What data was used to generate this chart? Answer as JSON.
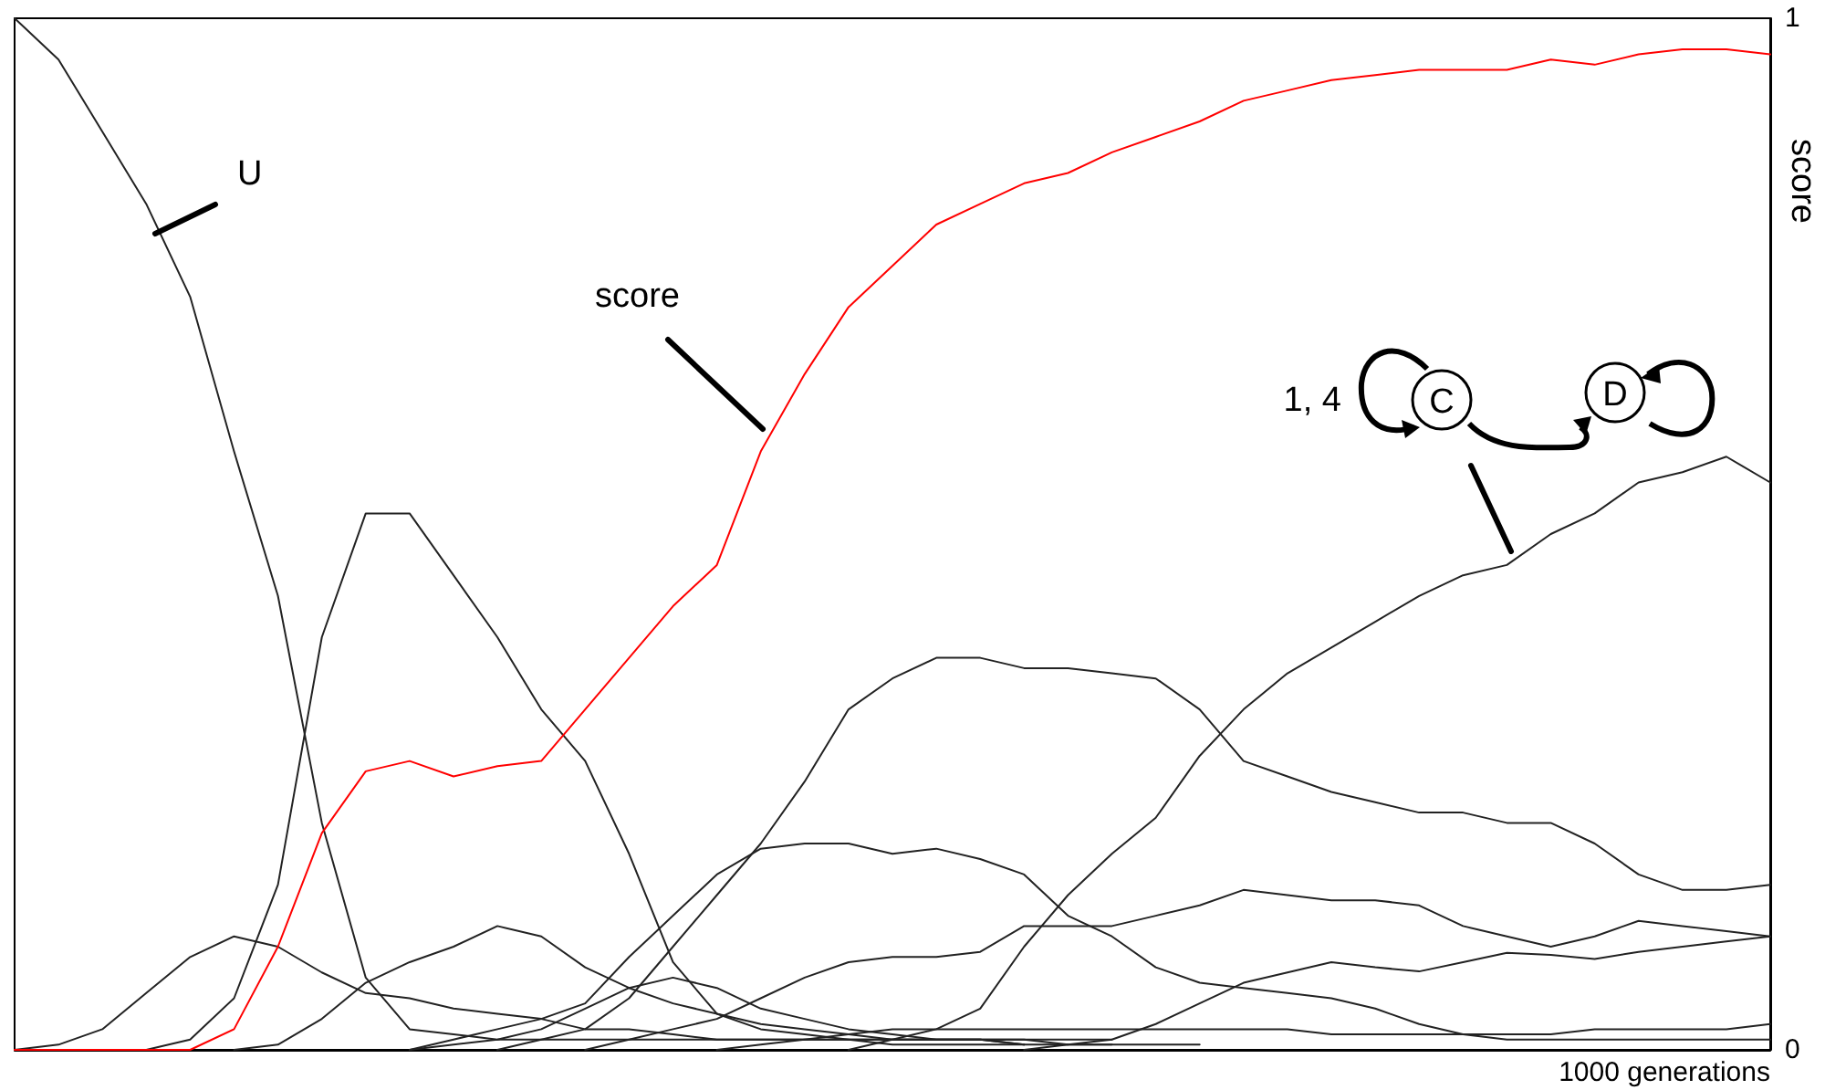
{
  "chart_data": {
    "type": "line",
    "xlabel": "1000 generations",
    "ylabel": "score",
    "categories": [
      null,
      null,
      null,
      null,
      null,
      null,
      null,
      null,
      null,
      null,
      null,
      null,
      null,
      null,
      null,
      null,
      null,
      null,
      null,
      null,
      null,
      null,
      null,
      null,
      null,
      null,
      null,
      null,
      null,
      null,
      null,
      null,
      null,
      null,
      null,
      null,
      null,
      null,
      null,
      null,
      null
    ],
    "ylim": [
      0,
      1
    ],
    "yticks": [
      0,
      1
    ],
    "grid": false,
    "marker": "none",
    "line_style": "solid",
    "annotations": [
      "U",
      "score",
      "1, 4",
      "C",
      "D"
    ],
    "series": [
      {
        "color": "#222222",
        "values": [
          1.0,
          0.96,
          0.89,
          0.82,
          0.73,
          0.58,
          0.44,
          0.22,
          0.07,
          0.02,
          0.015,
          0.01,
          0.01,
          0.01,
          0.01,
          0.01,
          0.01,
          0.01,
          0.01,
          0.01,
          0.01,
          0.01,
          0.01,
          0.01,
          0.01,
          0.01,
          null,
          null,
          null,
          null,
          null,
          null,
          null,
          null,
          null,
          null,
          null,
          null,
          null,
          null,
          null
        ]
      },
      {
        "color": "#222222",
        "values": [
          null,
          null,
          null,
          0,
          0.01,
          0.05,
          0.16,
          0.4,
          0.52,
          0.52,
          0.46,
          0.4,
          0.33,
          0.28,
          0.19,
          0.085,
          0.035,
          0.02,
          0.015,
          0.01,
          0.01,
          0.01,
          0.01,
          0.01,
          0.005,
          0.005,
          0.005,
          0.005,
          null,
          null,
          null,
          null,
          null,
          null,
          null,
          null,
          null,
          null,
          null,
          null,
          null
        ]
      },
      {
        "color": "#222222",
        "values": [
          0,
          0.005,
          0.02,
          0.055,
          0.09,
          0.11,
          0.1,
          0.075,
          0.055,
          0.05,
          0.04,
          0.035,
          0.03,
          0.02,
          0.02,
          0.015,
          0.01,
          0.01,
          0.01,
          0.01,
          0.005,
          0.005,
          0.005,
          0.005,
          null,
          null,
          null,
          null,
          null,
          null,
          null,
          null,
          null,
          null,
          null,
          null,
          null,
          null,
          null,
          null,
          null
        ]
      },
      {
        "color": "#222222",
        "values": [
          null,
          null,
          null,
          null,
          null,
          0,
          0.005,
          0.03,
          0.065,
          0.085,
          0.1,
          0.12,
          0.11,
          0.08,
          0.06,
          0.045,
          0.035,
          0.025,
          0.02,
          0.015,
          0.01,
          0.01,
          0.01,
          0.005,
          0.005,
          0.005,
          null,
          null,
          null,
          null,
          null,
          null,
          null,
          null,
          null,
          null,
          null,
          null,
          null,
          null,
          null
        ]
      },
      {
        "color": "#222222",
        "values": [
          null,
          null,
          null,
          null,
          null,
          null,
          null,
          null,
          null,
          null,
          null,
          0,
          0.01,
          0.02,
          0.05,
          0.1,
          0.15,
          0.2,
          0.26,
          0.33,
          0.36,
          0.38,
          0.38,
          0.37,
          0.37,
          0.365,
          0.36,
          0.33,
          0.28,
          0.265,
          0.25,
          0.24,
          0.23,
          0.23,
          0.22,
          0.22,
          0.2,
          0.17,
          0.155,
          0.155,
          0.16
        ]
      },
      {
        "color": "#222222",
        "values": [
          null,
          null,
          null,
          null,
          null,
          null,
          null,
          null,
          null,
          0,
          0.01,
          0.02,
          0.03,
          0.045,
          0.09,
          0.13,
          0.17,
          0.195,
          0.2,
          0.2,
          0.19,
          0.195,
          0.185,
          0.17,
          0.13,
          0.11,
          0.08,
          0.065,
          0.06,
          0.055,
          0.05,
          0.04,
          0.025,
          0.015,
          0.01,
          0.01,
          0.01,
          0.01,
          0.01,
          0.01,
          0.01
        ]
      },
      {
        "color": "#222222",
        "values": [
          null,
          null,
          null,
          null,
          null,
          null,
          null,
          null,
          null,
          null,
          null,
          null,
          null,
          0,
          0.01,
          0.02,
          0.03,
          0.05,
          0.07,
          0.085,
          0.09,
          0.09,
          0.095,
          0.12,
          0.12,
          0.12,
          0.13,
          0.14,
          0.155,
          0.15,
          0.145,
          0.145,
          0.14,
          0.12,
          0.11,
          0.1,
          0.11,
          0.125,
          0.12,
          0.115,
          0.11
        ]
      },
      {
        "color": "#222222",
        "values": [
          null,
          null,
          null,
          null,
          null,
          null,
          null,
          null,
          null,
          null,
          null,
          null,
          null,
          null,
          null,
          null,
          null,
          null,
          null,
          null,
          null,
          null,
          null,
          0,
          0.005,
          0.01,
          0.025,
          0.045,
          0.065,
          0.075,
          0.085,
          0.08,
          0.076,
          0.085,
          0.094,
          0.092,
          0.088,
          0.095,
          0.1,
          0.105,
          0.11
        ]
      },
      {
        "color": "#222222",
        "values": [
          null,
          null,
          null,
          null,
          null,
          null,
          null,
          null,
          null,
          null,
          null,
          null,
          null,
          null,
          null,
          null,
          null,
          null,
          null,
          0,
          0.01,
          0.02,
          0.04,
          0.1,
          0.15,
          0.19,
          0.225,
          0.285,
          0.33,
          0.365,
          0.39,
          0.415,
          0.44,
          0.46,
          0.47,
          0.5,
          0.52,
          0.55,
          0.56,
          0.575,
          0.55
        ]
      },
      {
        "color": "#222222",
        "values": [
          null,
          null,
          null,
          null,
          null,
          null,
          null,
          null,
          null,
          0,
          0.005,
          0.01,
          0.02,
          0.04,
          0.06,
          0.07,
          0.06,
          0.04,
          0.03,
          0.02,
          0.015,
          0.01,
          0.01,
          0.005,
          null,
          null,
          null,
          null,
          null,
          null,
          null,
          null,
          null,
          null,
          null,
          null,
          null,
          null,
          null,
          null,
          null
        ]
      },
      {
        "color": "#222222",
        "values": [
          null,
          null,
          null,
          null,
          null,
          null,
          null,
          null,
          null,
          null,
          null,
          null,
          null,
          null,
          null,
          null,
          0,
          0.005,
          0.01,
          0.015,
          0.02,
          0.02,
          0.02,
          0.02,
          0.02,
          0.02,
          0.02,
          0.02,
          0.02,
          0.02,
          0.015,
          0.015,
          0.015,
          0.015,
          0.015,
          0.015,
          0.02,
          0.02,
          0.02,
          0.02,
          0.025
        ]
      },
      {
        "color": "#ff0000",
        "values": [
          0,
          0,
          0,
          0,
          0,
          0.02,
          0.1,
          0.21,
          0.27,
          0.28,
          0.265,
          0.275,
          0.28,
          0.33,
          0.38,
          0.43,
          0.47,
          0.58,
          0.655,
          0.72,
          0.76,
          0.8,
          0.82,
          0.84,
          0.85,
          0.87,
          0.885,
          0.9,
          0.92,
          0.93,
          0.94,
          0.945,
          0.95,
          0.95,
          0.95,
          0.96,
          0.955,
          0.965,
          0.97,
          0.97,
          0.965
        ]
      }
    ]
  }
}
